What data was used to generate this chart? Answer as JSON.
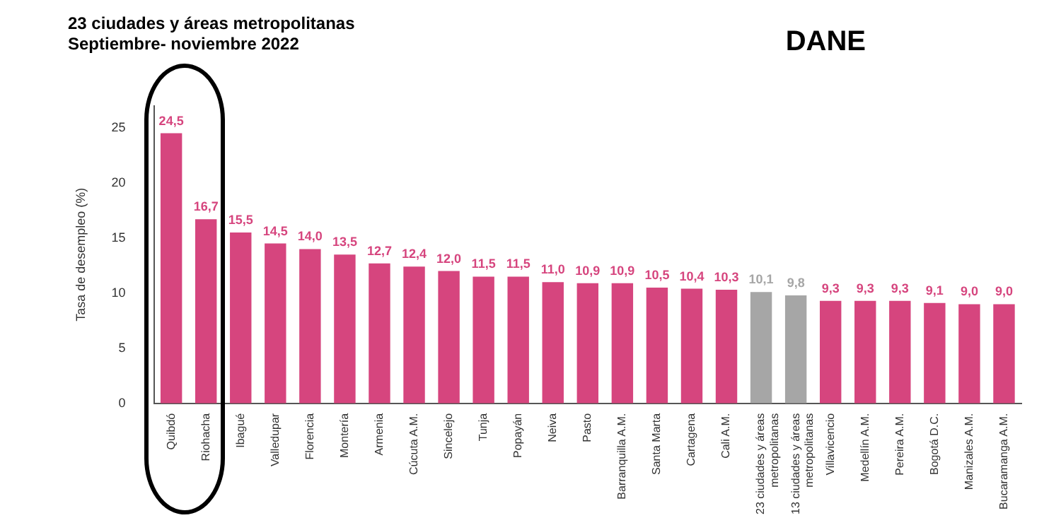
{
  "chart_data": {
    "type": "bar",
    "title": "23 ciudades y áreas metropolitanas",
    "subtitle": "Septiembre- noviembre 2022",
    "ylabel": "Tasa de desempleo (%)",
    "annotations": [
      "DANE"
    ],
    "categories": [
      "Quibdó",
      "Riohacha",
      "Ibagué",
      "Valledupar",
      "Florencia",
      "Montería",
      "Armenia",
      "Cúcuta A.M.",
      "Sincelejo",
      "Tunja",
      "Popayán",
      "Neiva",
      "Pasto",
      "Barranquilla A.M.",
      "Santa Marta",
      "Cartagena",
      "Cali A.M.",
      "23 ciudades y áreas metropolitanas",
      "13 ciudades y áreas metropolitanas",
      "Villavicencio",
      "Medellín A.M.",
      "Pereira A.M.",
      "Bogotá D.C.",
      "Manizales A.M.",
      "Bucaramanga A.M."
    ],
    "values": [
      24.5,
      16.7,
      15.5,
      14.5,
      14.0,
      13.5,
      12.7,
      12.4,
      12.0,
      11.5,
      11.5,
      11.0,
      10.9,
      10.9,
      10.5,
      10.4,
      10.3,
      10.1,
      9.8,
      9.3,
      9.3,
      9.3,
      9.1,
      9.0,
      9.0
    ],
    "value_labels": [
      "24,5",
      "16,7",
      "15,5",
      "14,5",
      "14,0",
      "13,5",
      "12,7",
      "12,4",
      "12,0",
      "11,5",
      "11,5",
      "11,0",
      "10,9",
      "10,9",
      "10,5",
      "10,4",
      "10,3",
      "10,1",
      "9,8",
      "9,3",
      "9,3",
      "9,3",
      "9,1",
      "9,0",
      "9,0"
    ],
    "colors": [
      "#d6457e",
      "#d6457e",
      "#d6457e",
      "#d6457e",
      "#d6457e",
      "#d6457e",
      "#d6457e",
      "#d6457e",
      "#d6457e",
      "#d6457e",
      "#d6457e",
      "#d6457e",
      "#d6457e",
      "#d6457e",
      "#d6457e",
      "#d6457e",
      "#d6457e",
      "#a6a6a6",
      "#a6a6a6",
      "#d6457e",
      "#d6457e",
      "#d6457e",
      "#d6457e",
      "#d6457e",
      "#d6457e"
    ],
    "ylim": [
      0,
      27
    ],
    "yticks": [
      0,
      5,
      10,
      15,
      20,
      25
    ],
    "grid": false,
    "legend": false
  }
}
